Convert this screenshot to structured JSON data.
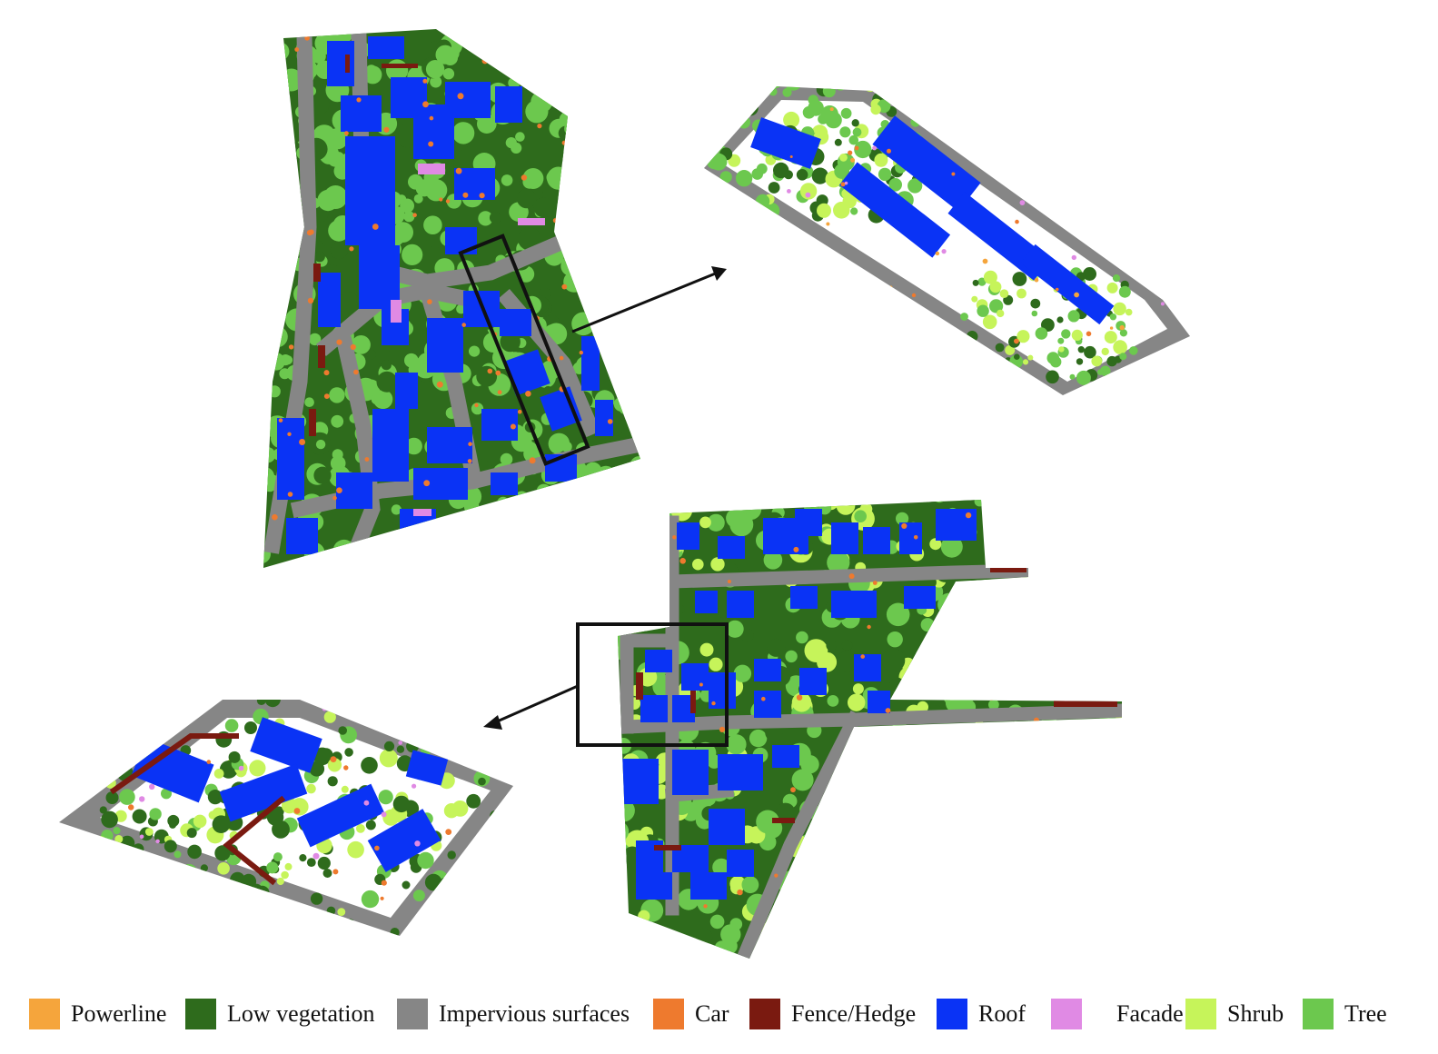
{
  "colors": {
    "Powerline": "#f5a53c",
    "Low vegetation": "#2e6b1c",
    "Impervious surfaces": "#868686",
    "Car": "#ee7a2e",
    "Fence/Hedge": "#7a1a10",
    "Roof": "#0a33f5",
    "Facade": "#e08ae4",
    "Shrub": "#c6f45a",
    "Tree": "#6cc84e",
    "frame": "#111111"
  },
  "legend": [
    {
      "label": "Powerline",
      "key": "Powerline"
    },
    {
      "label": "Low vegetation",
      "key": "Low vegetation"
    },
    {
      "label": "Impervious surfaces",
      "key": "Impervious surfaces"
    },
    {
      "label": "Car",
      "key": "Car"
    },
    {
      "label": "Fence/Hedge",
      "key": "Fence/Hedge"
    },
    {
      "label": "Roof",
      "key": "Roof"
    },
    {
      "label": "Facade",
      "key": "Facade"
    },
    {
      "label": "Shrub",
      "key": "Shrub"
    },
    {
      "label": "Tree",
      "key": "Tree"
    }
  ],
  "panels": [
    {
      "name": "top-left-overview-map",
      "view": "top-down"
    },
    {
      "name": "top-right-zoomed-3d-view",
      "view": "perspective"
    },
    {
      "name": "bottom-right-overview-map",
      "view": "top-down"
    },
    {
      "name": "bottom-left-zoomed-3d-view",
      "view": "perspective"
    }
  ]
}
